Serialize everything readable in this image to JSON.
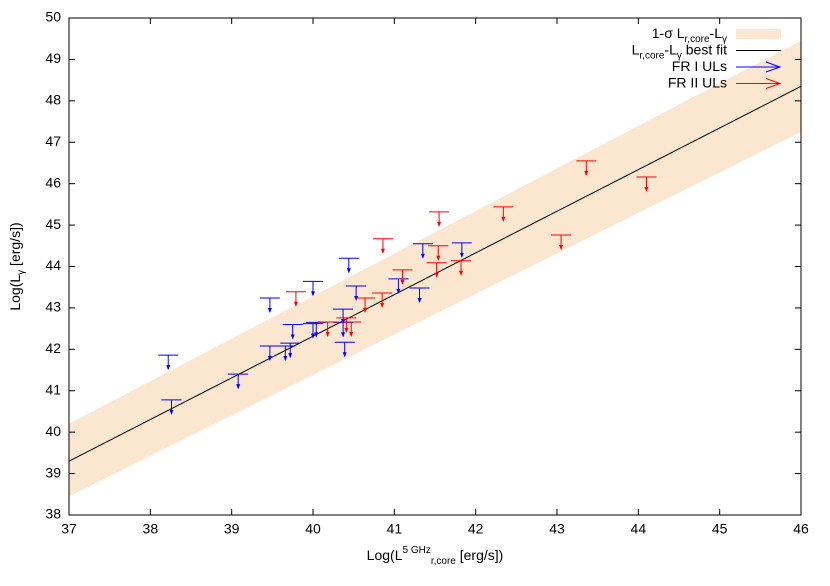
{
  "chart_data": {
    "type": "scatter",
    "xlabel": [
      {
        "text": "Log(L"
      },
      {
        "sup": "5 GHz"
      },
      {
        "sub": "r,core"
      },
      {
        "text": " [erg/s])"
      }
    ],
    "ylabel": [
      {
        "text": "Log(L"
      },
      {
        "sub": "γ"
      },
      {
        "text": " [erg/s])"
      }
    ],
    "xlim": [
      37,
      46
    ],
    "xticks": [
      37,
      38,
      39,
      40,
      41,
      42,
      43,
      44,
      45,
      46
    ],
    "ylim": [
      38,
      50
    ],
    "yticks": [
      38,
      39,
      40,
      41,
      42,
      43,
      44,
      45,
      46,
      47,
      48,
      49,
      50
    ],
    "legend": "upper right",
    "series": [
      {
        "type": "band",
        "name": [
          {
            "text": "1-σ L"
          },
          {
            "sub": "r,core"
          },
          {
            "text": "-L"
          },
          {
            "sub": "γ"
          }
        ],
        "color": "#fbe6cf",
        "x": [
          37,
          46
        ],
        "lower": [
          38.45,
          47.25
        ],
        "upper": [
          40.2,
          49.45
        ]
      },
      {
        "type": "line",
        "name": [
          {
            "text": "L"
          },
          {
            "sub": "r,core"
          },
          {
            "text": "-L"
          },
          {
            "sub": "γ"
          },
          {
            "text": " best fit"
          }
        ],
        "color": "#000000",
        "x": [
          37,
          46
        ],
        "values": [
          39.3,
          48.35
        ]
      },
      {
        "type": "upper_limit",
        "name": [
          {
            "text": "FR I ULs"
          }
        ],
        "color": "#0000ff",
        "x": [
          38.22,
          38.26,
          39.08,
          39.47,
          39.47,
          39.66,
          39.72,
          39.75,
          40.0,
          40.0,
          40.04,
          40.37,
          40.37,
          40.39,
          40.44,
          40.53,
          41.05,
          41.31,
          41.35,
          41.83
        ],
        "values": [
          41.86,
          40.78,
          41.4,
          43.24,
          42.08,
          42.08,
          42.15,
          42.6,
          43.64,
          42.62,
          42.65,
          42.97,
          42.65,
          42.17,
          44.2,
          43.53,
          43.7,
          43.48,
          44.55,
          44.57
        ]
      },
      {
        "type": "upper_limit",
        "name": [
          {
            "text": "FR II ULs"
          }
        ],
        "color": "#ff0000",
        "x": [
          39.79,
          40.18,
          40.41,
          40.47,
          40.64,
          40.85,
          40.86,
          41.1,
          41.52,
          41.54,
          41.55,
          41.82,
          42.34,
          43.05,
          43.36,
          44.1
        ],
        "values": [
          43.39,
          42.66,
          42.76,
          42.66,
          43.24,
          43.36,
          44.67,
          43.92,
          44.09,
          44.5,
          45.32,
          44.14,
          45.44,
          44.76,
          46.55,
          46.16
        ]
      }
    ]
  }
}
